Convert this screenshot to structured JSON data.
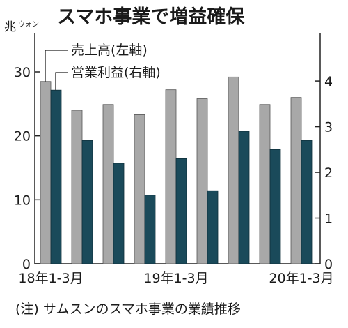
{
  "chart_data": {
    "type": "bar",
    "title": "スマホ事業で増益確保",
    "note": "(注) サムスンのスマホ事業の業績推移",
    "y_unit_main": "兆",
    "y_unit_sub": "ウォン",
    "categories": [
      "18年1-3月",
      "",
      "",
      "",
      "19年1-3月",
      "",
      "",
      "",
      "20年1-3月"
    ],
    "x_tick_labels": [
      "18年1-3月",
      "19年1-3月",
      "20年1-3月"
    ],
    "series": [
      {
        "name": "売上高(左軸)",
        "axis": "left",
        "color": "#a8a8a8",
        "values": [
          28.5,
          24.0,
          24.9,
          23.3,
          27.2,
          25.8,
          29.2,
          24.9,
          26.0
        ]
      },
      {
        "name": "営業利益(右軸)",
        "axis": "right",
        "color": "#1a4a5a",
        "values": [
          3.8,
          2.7,
          2.2,
          1.5,
          2.3,
          1.6,
          2.9,
          2.5,
          2.7
        ]
      }
    ],
    "y_left": {
      "ylim": [
        0,
        36
      ],
      "ticks": [
        0,
        10,
        20,
        30
      ]
    },
    "y_right": {
      "ylim": [
        0,
        5.04
      ],
      "ticks": [
        0,
        1,
        2,
        3,
        4
      ]
    },
    "grid": false,
    "legend_placement": "top-left"
  }
}
